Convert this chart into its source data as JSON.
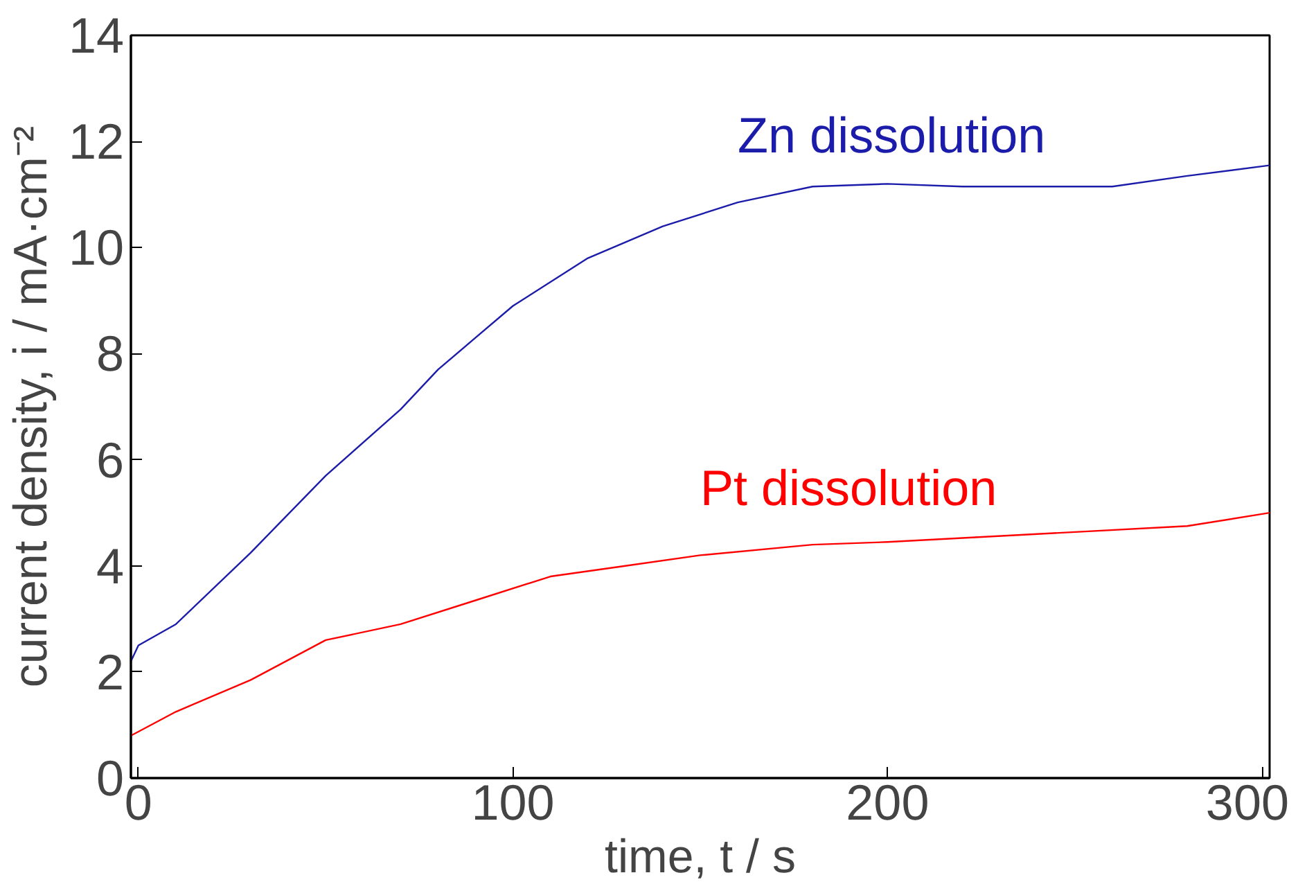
{
  "chart_data": {
    "type": "line",
    "xlabel": "time, t / s",
    "ylabel": "current density, i / mA·cm⁻²",
    "xlim": [
      -2,
      302
    ],
    "ylim": [
      0,
      14
    ],
    "xticks": [
      0,
      100,
      200,
      300
    ],
    "yticks": [
      0,
      2,
      4,
      6,
      8,
      10,
      12,
      14
    ],
    "grid": false,
    "legend": false,
    "marker": "none",
    "line_style": "solid",
    "series": [
      {
        "name": "Zn dissolution",
        "color": "#1c1caa",
        "x": [
          -2,
          0,
          10,
          30,
          50,
          70,
          80,
          90,
          100,
          120,
          140,
          160,
          180,
          200,
          220,
          260,
          280,
          302
        ],
        "values": [
          2.2,
          2.5,
          2.9,
          4.25,
          5.7,
          6.95,
          7.7,
          8.3,
          8.9,
          9.8,
          10.4,
          10.85,
          11.15,
          11.2,
          11.15,
          11.15,
          11.35,
          11.55
        ]
      },
      {
        "name": "Pt dissolution",
        "color": "#ff0000",
        "x": [
          -2,
          10,
          30,
          50,
          70,
          90,
          110,
          130,
          150,
          180,
          200,
          240,
          280,
          302
        ],
        "values": [
          0.8,
          1.25,
          1.85,
          2.6,
          2.9,
          3.35,
          3.8,
          4.0,
          4.2,
          4.4,
          4.45,
          4.6,
          4.75,
          5.0
        ]
      }
    ]
  }
}
